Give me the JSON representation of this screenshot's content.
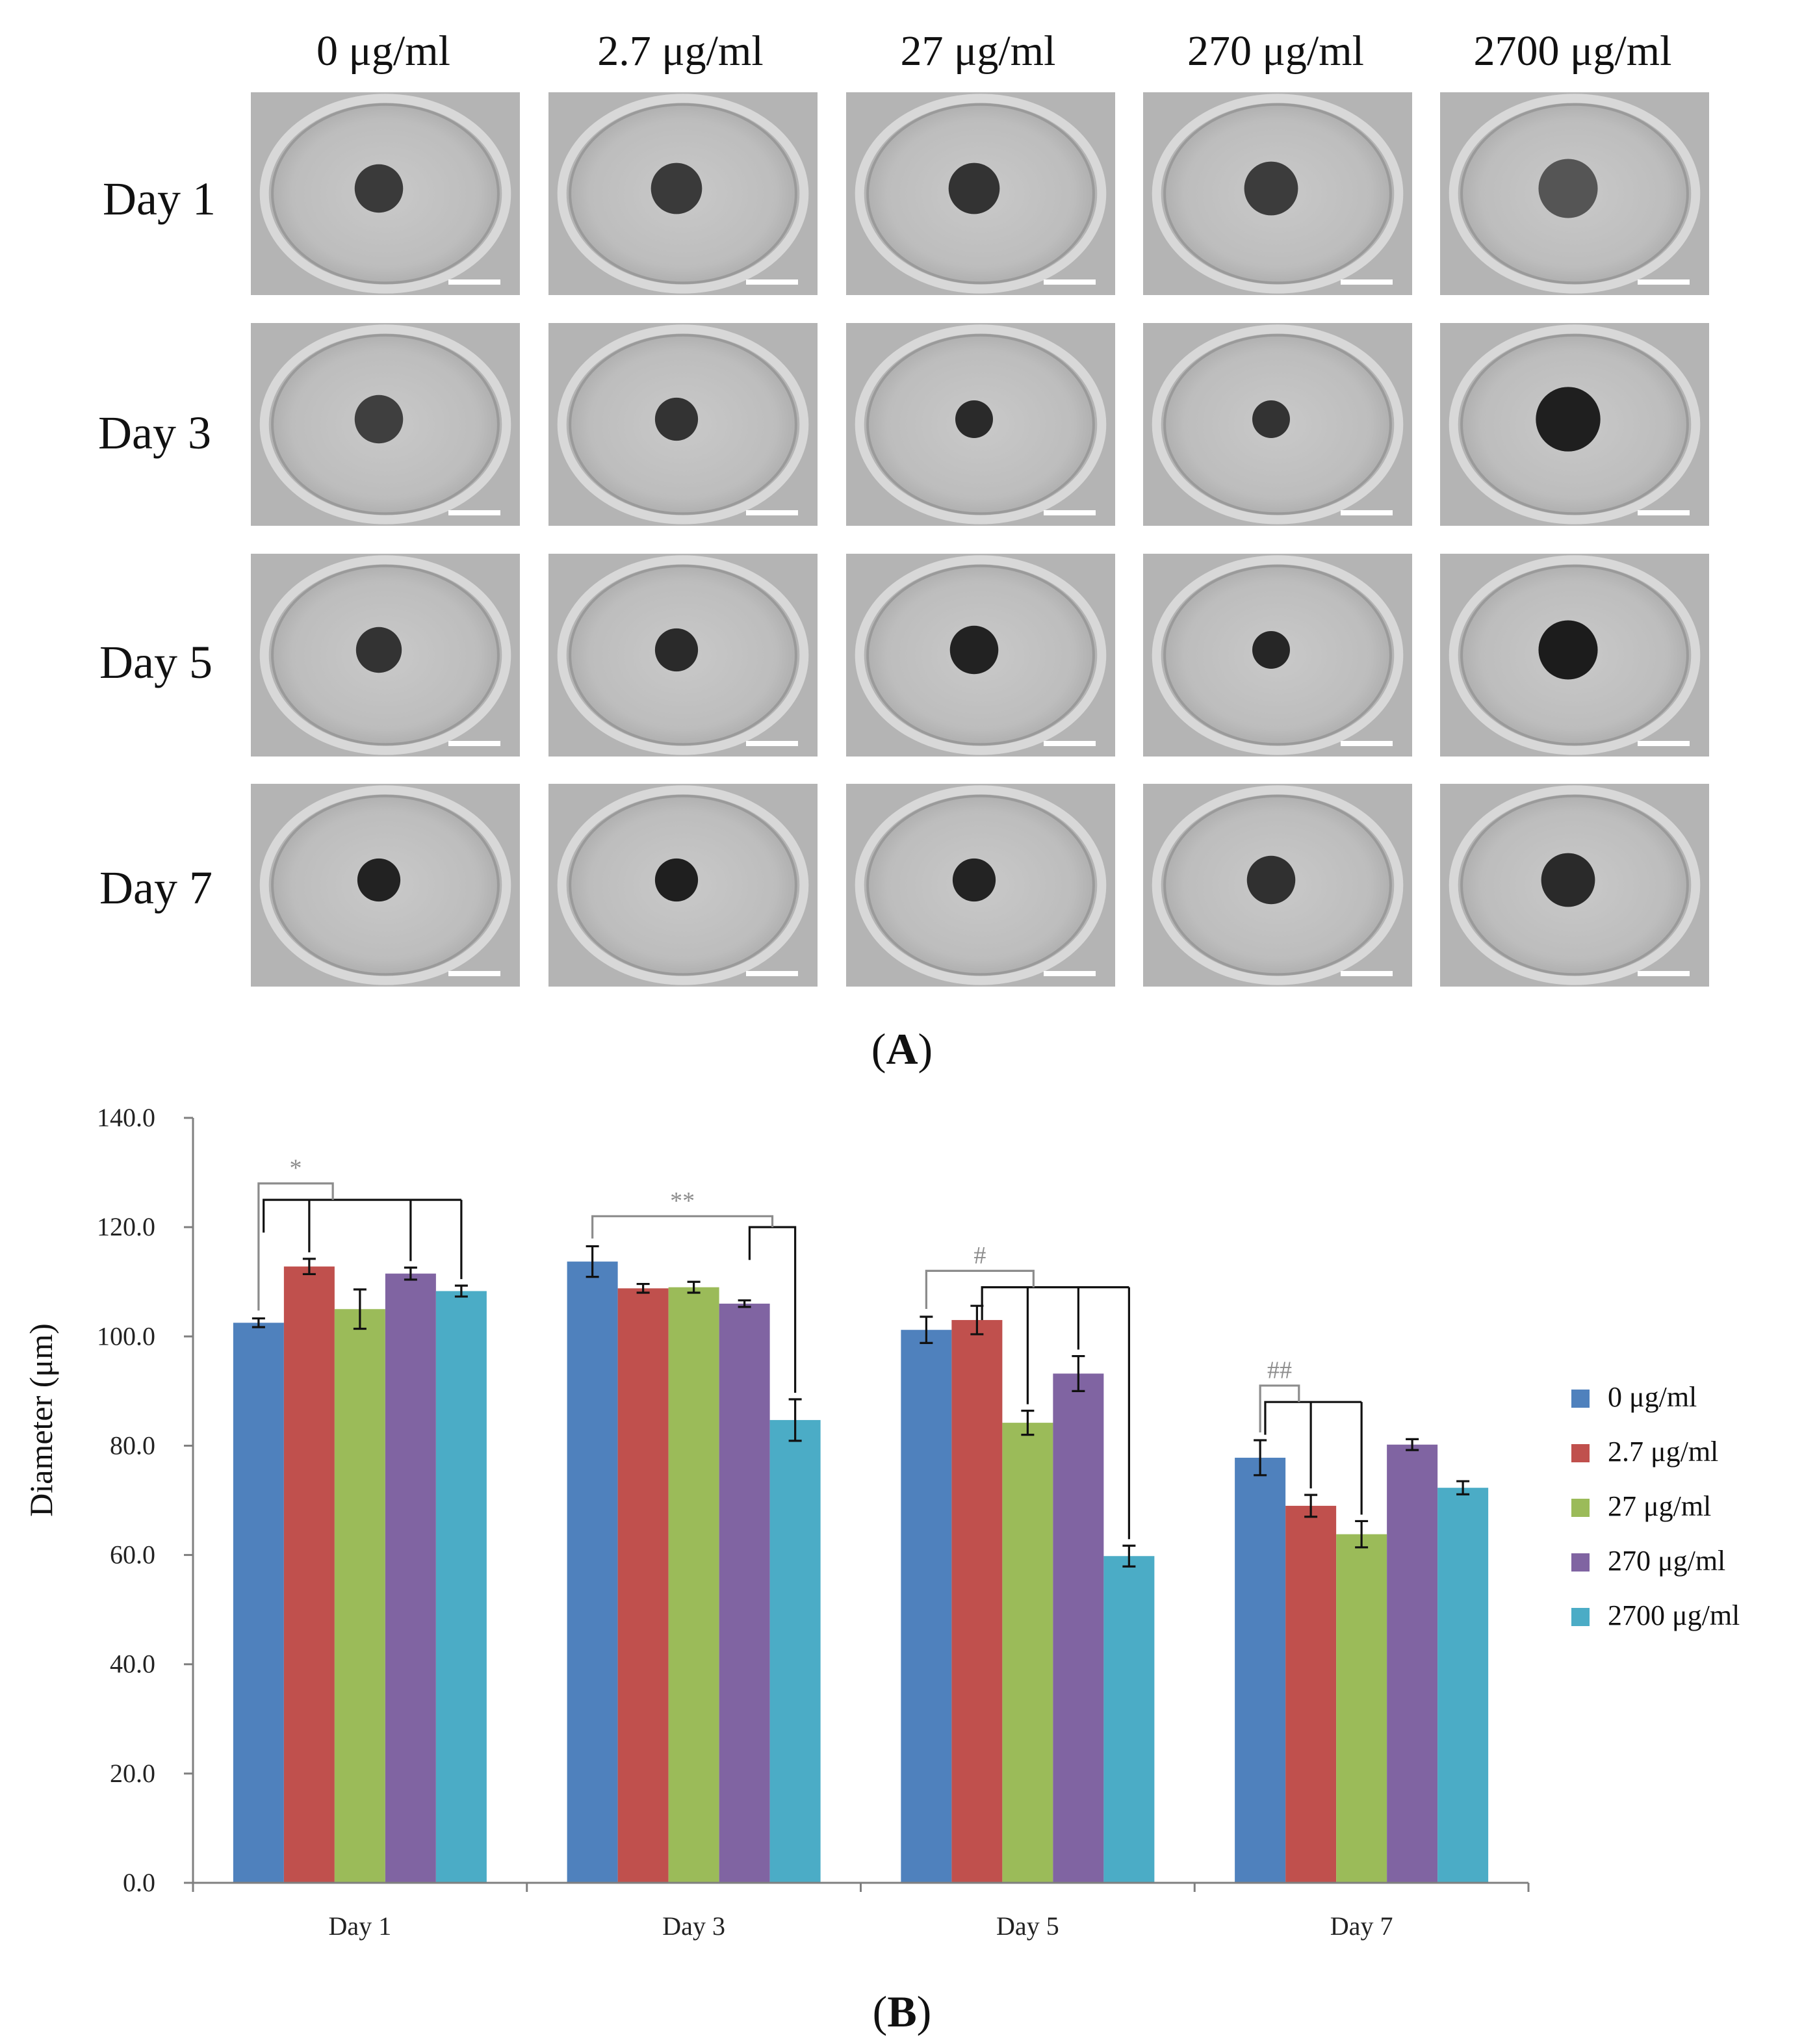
{
  "panel_a": {
    "label_open": "(",
    "label_letter": "A",
    "label_close": ")",
    "columns": [
      "0 μg/ml",
      "2.7 μg/ml",
      "27 μg/ml",
      "270 μg/ml",
      "2700 μg/ml"
    ],
    "rows": [
      "Day 1",
      "Day 3",
      "Day 5",
      "Day 7"
    ]
  },
  "panel_b": {
    "label_open": "(",
    "label_letter": "B",
    "label_close": ")"
  },
  "colors": {
    "0": "#4f81bd",
    "2.7": "#c0504d",
    "27": "#9bbb59",
    "270": "#8064a2",
    "2700": "#4bacc6",
    "bracket_grey": "#8c8c8c",
    "bracket_black": "#111111"
  },
  "chart_data": {
    "type": "bar",
    "title": "",
    "xlabel": "",
    "ylabel": "Diameter (μm)",
    "ylim": [
      0,
      140
    ],
    "yticks": [
      "0.0",
      "20.0",
      "40.0",
      "60.0",
      "80.0",
      "100.0",
      "120.0",
      "140.0"
    ],
    "categories": [
      "Day 1",
      "Day 3",
      "Day 5",
      "Day 7"
    ],
    "legend_position": "right",
    "series": [
      {
        "name": "0 μg/ml",
        "values": [
          102.5,
          113.7,
          101.2,
          77.8
        ],
        "errors": [
          0.8,
          2.8,
          2.4,
          3.2
        ]
      },
      {
        "name": "2.7 μg/ml",
        "values": [
          112.8,
          108.8,
          103.0,
          69.0
        ],
        "errors": [
          1.4,
          0.8,
          2.6,
          2.0
        ]
      },
      {
        "name": "27 μg/ml",
        "values": [
          105.0,
          109.0,
          84.2,
          63.8
        ],
        "errors": [
          3.6,
          1.0,
          2.2,
          2.4
        ]
      },
      {
        "name": "270 μg/ml",
        "values": [
          111.5,
          106.0,
          93.2,
          80.2
        ],
        "errors": [
          1.1,
          0.6,
          3.2,
          1.0
        ]
      },
      {
        "name": "2700 μg/ml",
        "values": [
          108.3,
          84.7,
          59.8,
          72.3
        ],
        "errors": [
          1.0,
          3.8,
          1.9,
          1.2
        ]
      }
    ],
    "annotations": [
      {
        "symbol": "*",
        "category": "Day 1",
        "reference": "0 μg/ml",
        "compared": [
          "2.7 μg/ml",
          "270 μg/ml",
          "2700 μg/ml"
        ],
        "label_y": 131,
        "ref_y": 128,
        "group_y": 125
      },
      {
        "symbol": "**",
        "category": "Day 3",
        "reference": "0 μg/ml",
        "compared": [
          "2700 μg/ml"
        ],
        "label_y": 125,
        "ref_y": 122,
        "group_y": 120
      },
      {
        "symbol": "#",
        "category": "Day 5",
        "reference": "0 μg/ml",
        "compared": [
          "27 μg/ml",
          "270 μg/ml",
          "2700 μg/ml"
        ],
        "label_y": 115,
        "ref_y": 112,
        "group_y": 109
      },
      {
        "symbol": "##",
        "category": "Day 7",
        "reference": "0 μg/ml",
        "compared": [
          "2.7 μg/ml",
          "27 μg/ml"
        ],
        "label_y": 94,
        "ref_y": 91,
        "group_y": 88
      }
    ]
  }
}
